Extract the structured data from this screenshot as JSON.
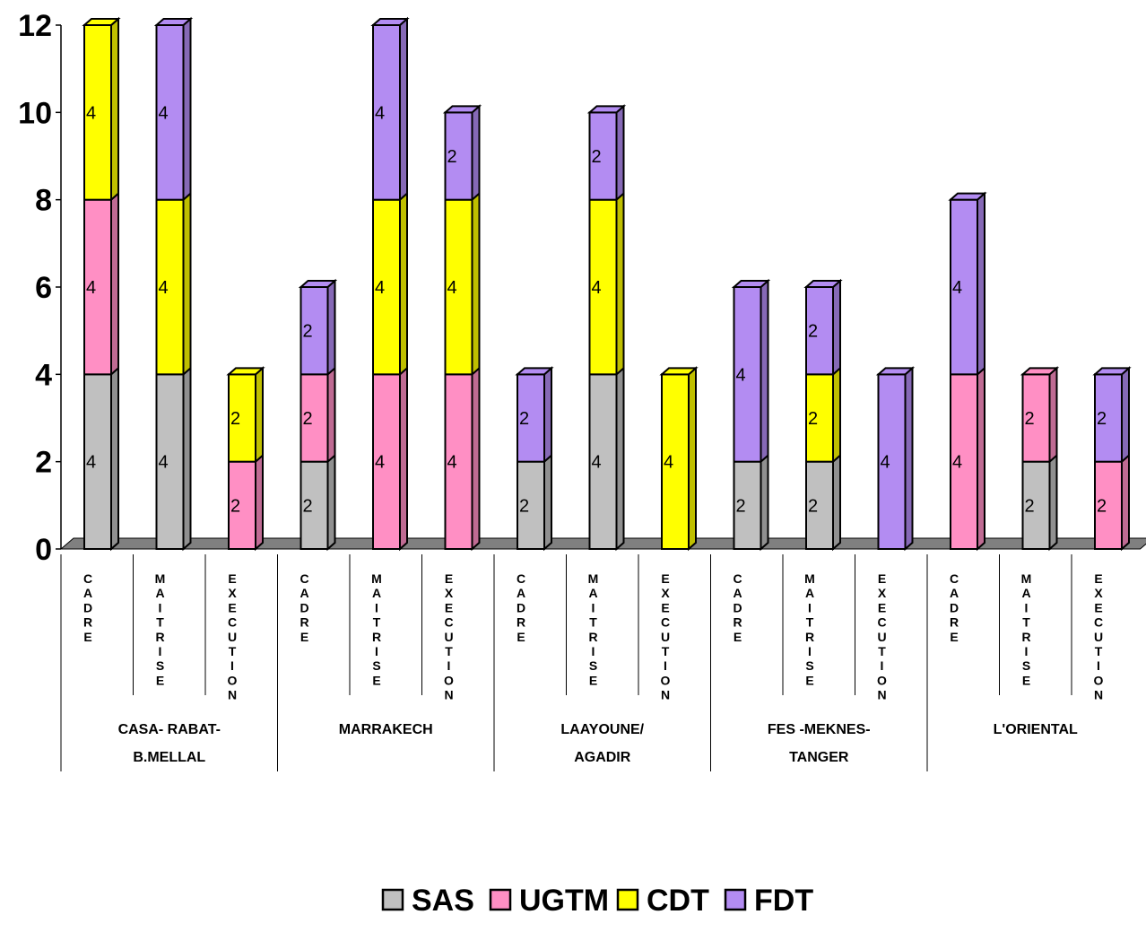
{
  "chart_data": {
    "type": "bar",
    "stacked": true,
    "three_d": true,
    "grid": false,
    "legend_position": "bottom",
    "ylim": [
      0,
      12
    ],
    "yticks": [
      "0",
      "2",
      "4",
      "6",
      "8",
      "10",
      "12"
    ],
    "categories": [
      "CADRE",
      "MAITRISE",
      "EXECUTION",
      "CADRE",
      "MAITRISE",
      "EXECUTION",
      "CADRE",
      "MAITRISE",
      "EXECUTION",
      "CADRE",
      "MAITRISE",
      "EXECUTION",
      "CADRE",
      "MAITRISE",
      "EXECUTION"
    ],
    "groups": [
      {
        "lines": [
          "CASA- RABAT-",
          "B.MELLAL"
        ]
      },
      {
        "lines": [
          "MARRAKECH"
        ]
      },
      {
        "lines": [
          "LAAYOUNE/",
          "AGADIR"
        ]
      },
      {
        "lines": [
          "FES -MEKNES-",
          "TANGER"
        ]
      },
      {
        "lines": [
          "L'ORIENTAL"
        ]
      }
    ],
    "series": [
      {
        "name": "SAS",
        "color": "#c0c0c0",
        "values": [
          4,
          4,
          0,
          2,
          0,
          0,
          2,
          4,
          0,
          2,
          2,
          0,
          0,
          2,
          0
        ]
      },
      {
        "name": "UGTM",
        "color": "#ff8fc4",
        "values": [
          4,
          0,
          2,
          2,
          4,
          4,
          0,
          0,
          0,
          0,
          0,
          0,
          4,
          2,
          2
        ]
      },
      {
        "name": "CDT",
        "color": "#ffff00",
        "values": [
          4,
          4,
          2,
          0,
          4,
          4,
          0,
          4,
          4,
          0,
          2,
          0,
          0,
          0,
          0
        ]
      },
      {
        "name": "FDT",
        "color": "#b38cf2",
        "values": [
          0,
          4,
          0,
          2,
          4,
          2,
          2,
          2,
          0,
          4,
          2,
          4,
          4,
          0,
          2
        ]
      }
    ]
  }
}
